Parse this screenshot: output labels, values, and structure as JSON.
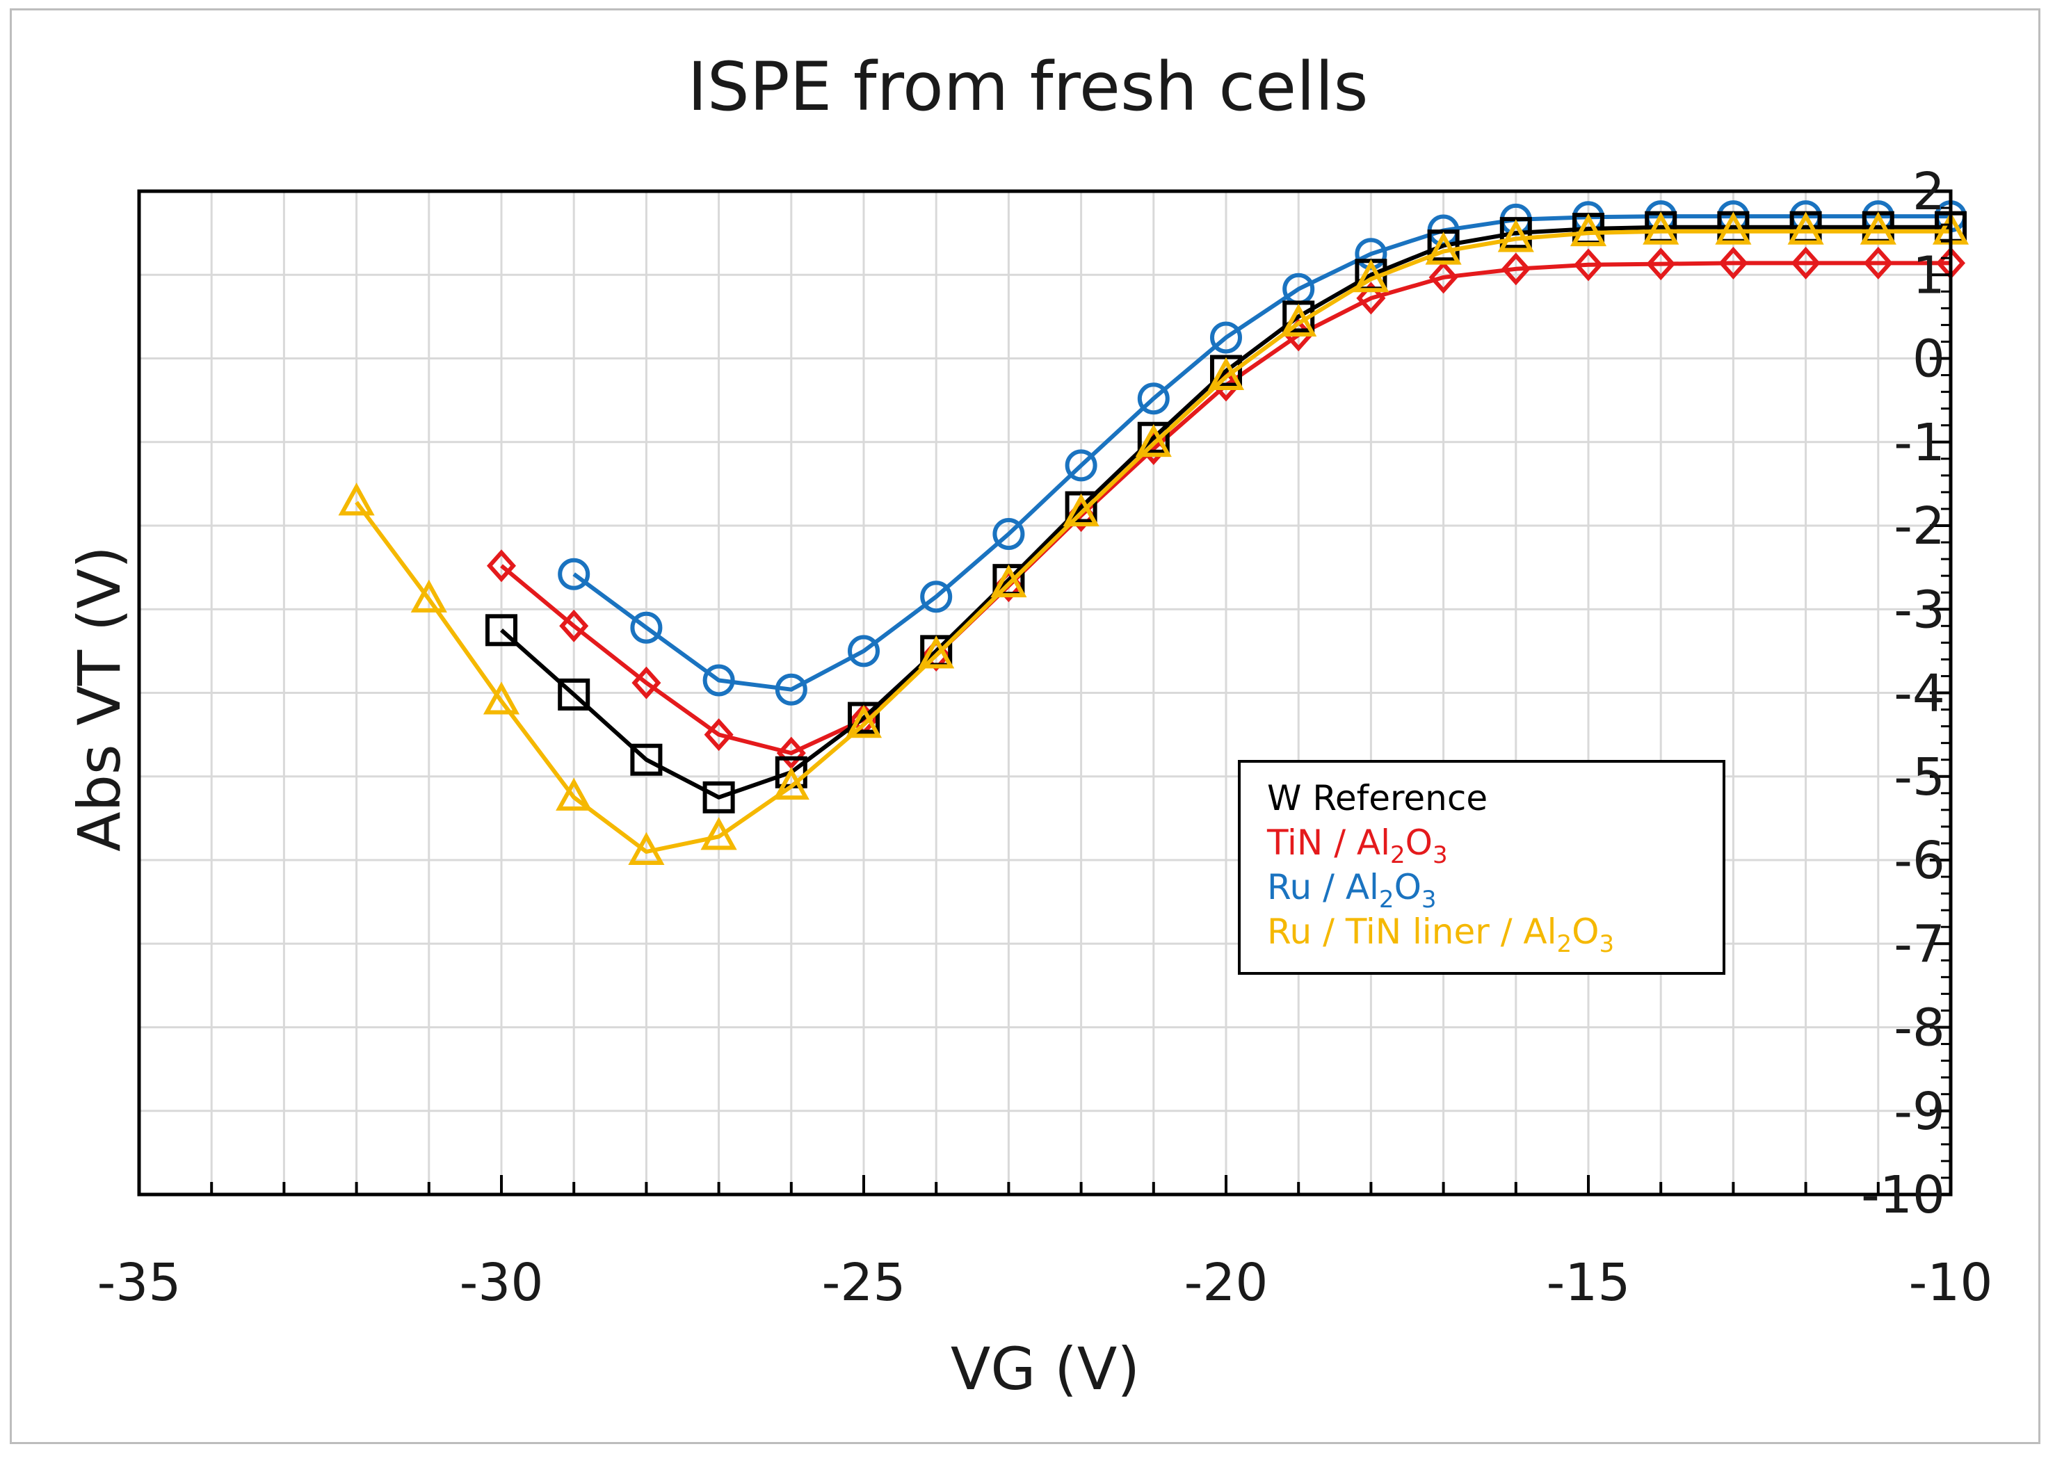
{
  "chart_data": {
    "type": "line",
    "title": "ISPE from fresh cells",
    "xlabel": "VG (V)",
    "ylabel": "Abs VT (V)",
    "xlim": [
      -35,
      -10
    ],
    "ylim": [
      -10,
      2
    ],
    "xticks": [
      -35,
      -30,
      -25,
      -20,
      -15,
      -10
    ],
    "yticks": [
      2,
      1,
      0,
      -1,
      -2,
      -3,
      -4,
      -5,
      -6,
      -7,
      -8,
      -9,
      -10
    ],
    "x_minor_step": 1,
    "grid": true,
    "legend_position": "lower-right",
    "series": [
      {
        "name": "W Reference",
        "legend": {
          "main": "W Reference",
          "sub1": "",
          "mid": "",
          "sub2": ""
        },
        "color": "#000000",
        "marker": "square",
        "x": [
          -30,
          -29,
          -28,
          -27,
          -26,
          -25,
          -24,
          -23,
          -22,
          -21,
          -20,
          -19,
          -18,
          -17,
          -16,
          -15,
          -14,
          -13,
          -12,
          -11,
          -10
        ],
        "y": [
          -3.25,
          -4.02,
          -4.8,
          -5.25,
          -4.95,
          -4.3,
          -3.5,
          -2.65,
          -1.78,
          -0.95,
          -0.15,
          0.5,
          1.0,
          1.35,
          1.5,
          1.55,
          1.57,
          1.57,
          1.57,
          1.57,
          1.57
        ]
      },
      {
        "name": "TiN / Al2O3",
        "legend": {
          "main": "TiN / Al",
          "sub1": "2",
          "mid": "O",
          "sub2": "3"
        },
        "color": "#e41a1c",
        "marker": "diamond",
        "x": [
          -30,
          -29,
          -28,
          -27,
          -26,
          -25,
          -24,
          -23,
          -22,
          -21,
          -20,
          -19,
          -18,
          -17,
          -16,
          -15,
          -14,
          -13,
          -12,
          -11,
          -10
        ],
        "y": [
          -2.48,
          -3.2,
          -3.88,
          -4.5,
          -4.72,
          -4.32,
          -3.55,
          -2.72,
          -1.88,
          -1.08,
          -0.32,
          0.28,
          0.72,
          0.97,
          1.07,
          1.12,
          1.13,
          1.14,
          1.14,
          1.14,
          1.14
        ]
      },
      {
        "name": "Ru / Al2O3",
        "legend": {
          "main": "Ru / Al",
          "sub1": "2",
          "mid": "O",
          "sub2": "3"
        },
        "color": "#1a73c0",
        "marker": "circle",
        "x": [
          -29,
          -28,
          -27,
          -26,
          -25,
          -24,
          -23,
          -22,
          -21,
          -20,
          -19,
          -18,
          -17,
          -16,
          -15,
          -14,
          -13,
          -12,
          -11,
          -10
        ],
        "y": [
          -2.58,
          -3.22,
          -3.85,
          -3.96,
          -3.5,
          -2.85,
          -2.1,
          -1.28,
          -0.48,
          0.25,
          0.83,
          1.25,
          1.53,
          1.66,
          1.69,
          1.7,
          1.7,
          1.7,
          1.7,
          1.7
        ]
      },
      {
        "name": "Ru / TiN liner / Al2O3",
        "legend": {
          "main": "Ru / TiN liner / Al",
          "sub1": "2",
          "mid": "O",
          "sub2": "3"
        },
        "color": "#f5b800",
        "marker": "triangle",
        "x": [
          -32,
          -31,
          -30,
          -29,
          -28,
          -27,
          -26,
          -25,
          -24,
          -23,
          -22,
          -21,
          -20,
          -19,
          -18,
          -17,
          -16,
          -15,
          -14,
          -13,
          -12,
          -11,
          -10
        ],
        "y": [
          -1.72,
          -2.88,
          -4.1,
          -5.25,
          -5.9,
          -5.72,
          -5.12,
          -4.38,
          -3.55,
          -2.7,
          -1.85,
          -1.02,
          -0.22,
          0.42,
          0.95,
          1.28,
          1.43,
          1.5,
          1.52,
          1.52,
          1.52,
          1.52,
          1.52
        ]
      }
    ]
  }
}
